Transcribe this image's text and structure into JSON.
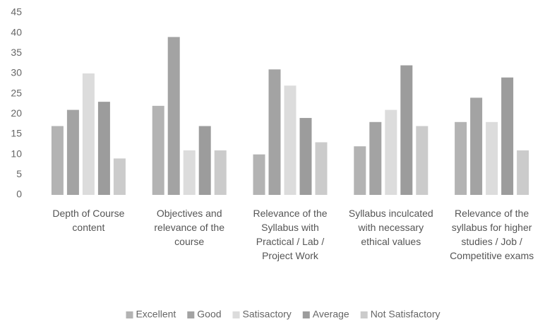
{
  "chart_data": {
    "type": "bar",
    "categories": [
      "Depth of Course content",
      "Objectives and relevance of the course",
      "Relevance of the Syllabus with Practical / Lab / Project Work",
      "Syllabus inculcated with necessary ethical values",
      "Relevance of the syllabus for higher studies / Job / Competitive exams"
    ],
    "series": [
      {
        "name": "Excellent",
        "color": "#b3b3b3",
        "values": [
          17,
          22,
          10,
          12,
          18
        ]
      },
      {
        "name": "Good",
        "color": "#a3a3a3",
        "values": [
          21,
          39,
          31,
          18,
          24
        ]
      },
      {
        "name": "Satisactory",
        "color": "#dcdcdc",
        "values": [
          30,
          11,
          27,
          21,
          18
        ]
      },
      {
        "name": "Average",
        "color": "#9c9c9c",
        "values": [
          23,
          17,
          19,
          32,
          29
        ]
      },
      {
        "name": "Not Satisfactory",
        "color": "#cbcbcb",
        "values": [
          9,
          11,
          13,
          17,
          11
        ]
      }
    ],
    "ylim": [
      0,
      45
    ],
    "yticks": [
      0,
      5,
      10,
      15,
      20,
      25,
      30,
      35,
      40,
      45
    ],
    "grid": false,
    "legend": "bottom"
  }
}
